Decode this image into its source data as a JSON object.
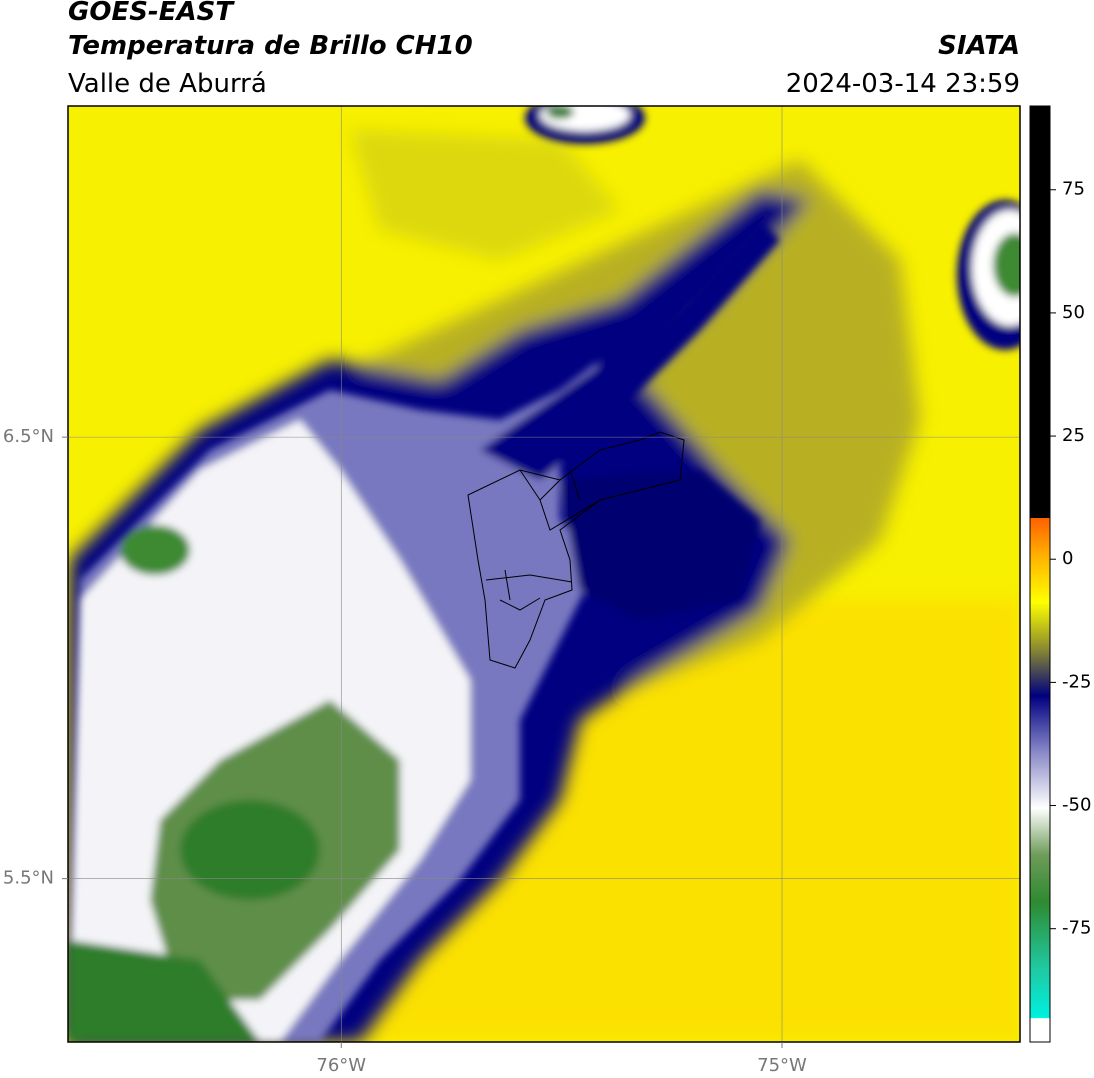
{
  "header": {
    "satellite": "GOES-EAST",
    "product": "Temperatura de Brillo CH10",
    "region": "Valle de Aburrá",
    "agency": "SIATA",
    "datetime": "2024-03-14 23:59"
  },
  "map": {
    "lonlim": [
      -76.62,
      -74.46
    ],
    "latlim": [
      5.13,
      7.25
    ],
    "lonticks": [
      {
        "value": -76,
        "label": "76°W"
      },
      {
        "value": -75,
        "label": "75°W"
      }
    ],
    "latticks": [
      {
        "value": 6.5,
        "label": "6.5°N"
      },
      {
        "value": 5.5,
        "label": "5.5°N"
      }
    ],
    "grid": true
  },
  "colorbar": {
    "lim": [
      -98,
      92
    ],
    "ticks": [
      75,
      50,
      25,
      0,
      -25,
      -50,
      -75
    ]
  }
}
